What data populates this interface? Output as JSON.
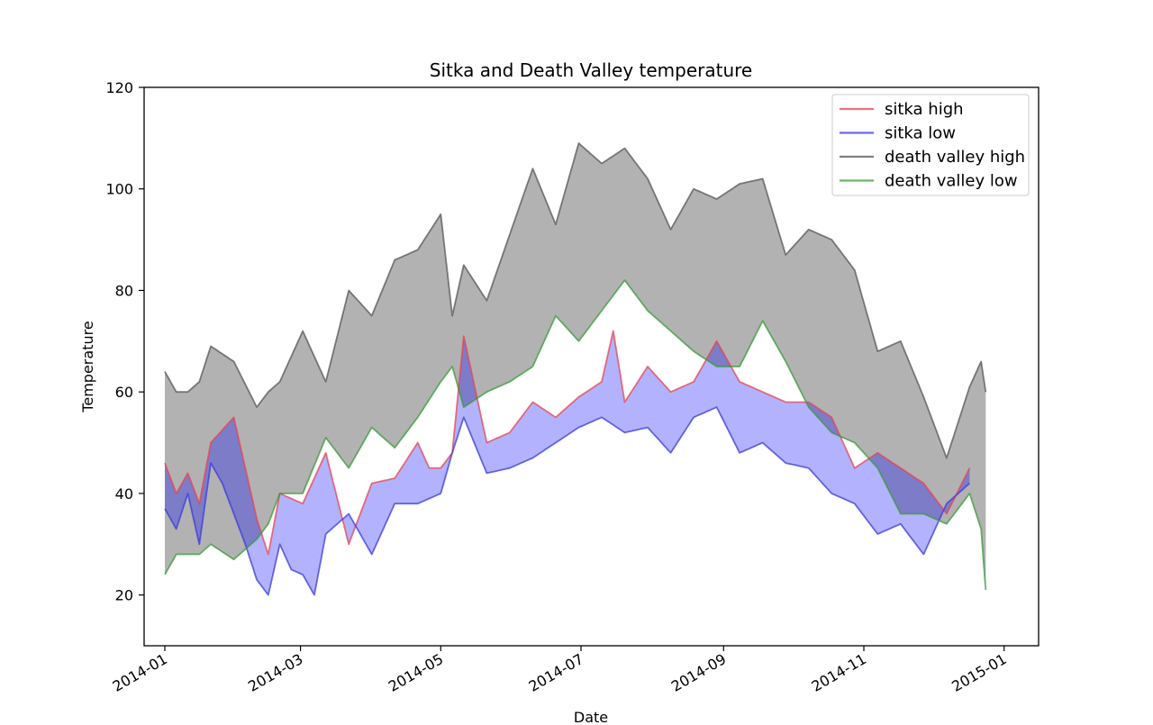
{
  "chart_data": {
    "type": "line",
    "title": "Sitka and Death Valley temperature",
    "xlabel": "Date",
    "ylabel": "Temperature",
    "ylim": [
      10,
      120
    ],
    "y_ticks": [
      20,
      40,
      60,
      80,
      100,
      120
    ],
    "xlim_days": [
      -9,
      380
    ],
    "x_ticks": [
      {
        "day": 0,
        "label": "2014-01"
      },
      {
        "day": 59,
        "label": "2014-03"
      },
      {
        "day": 120,
        "label": "2014-05"
      },
      {
        "day": 181,
        "label": "2014-07"
      },
      {
        "day": 243,
        "label": "2014-09"
      },
      {
        "day": 304,
        "label": "2014-11"
      },
      {
        "day": 365,
        "label": "2015-01"
      }
    ],
    "fills": [
      {
        "between": [
          "death valley high",
          "death valley low"
        ],
        "color": "#000000",
        "alpha": 0.3
      },
      {
        "between": [
          "sitka high",
          "sitka low"
        ],
        "color": "#0000ff",
        "alpha": 0.3
      }
    ],
    "series": [
      {
        "name": "sitka high",
        "color": "#e8434f",
        "days": [
          0,
          5,
          10,
          15,
          20,
          30,
          40,
          45,
          50,
          60,
          70,
          80,
          90,
          100,
          110,
          115,
          120,
          125,
          130,
          140,
          150,
          160,
          170,
          180,
          190,
          195,
          200,
          210,
          220,
          230,
          240,
          250,
          260,
          270,
          280,
          290,
          300,
          310,
          320,
          330,
          340,
          350
        ],
        "values": [
          46,
          40,
          44,
          38,
          50,
          55,
          35,
          28,
          40,
          38,
          48,
          30,
          42,
          43,
          50,
          45,
          45,
          48,
          71,
          50,
          52,
          58,
          55,
          59,
          62,
          72,
          58,
          65,
          60,
          62,
          70,
          62,
          60,
          58,
          58,
          55,
          45,
          48,
          45,
          42,
          36,
          45
        ]
      },
      {
        "name": "sitka low",
        "color": "#3b3bdb",
        "days": [
          0,
          5,
          10,
          15,
          20,
          25,
          30,
          35,
          40,
          45,
          50,
          55,
          60,
          65,
          70,
          80,
          90,
          100,
          110,
          120,
          125,
          130,
          140,
          150,
          160,
          170,
          180,
          190,
          200,
          210,
          220,
          230,
          240,
          250,
          260,
          270,
          280,
          290,
          300,
          310,
          320,
          330,
          340,
          350
        ],
        "values": [
          37,
          33,
          40,
          30,
          46,
          42,
          36,
          30,
          23,
          20,
          30,
          25,
          24,
          20,
          32,
          36,
          28,
          38,
          38,
          40,
          48,
          55,
          44,
          45,
          47,
          50,
          53,
          55,
          52,
          53,
          48,
          55,
          57,
          48,
          50,
          46,
          45,
          40,
          38,
          32,
          34,
          28,
          38,
          42
        ]
      },
      {
        "name": "death valley high",
        "color": "#555555",
        "days": [
          0,
          5,
          10,
          15,
          20,
          30,
          40,
          45,
          50,
          60,
          70,
          80,
          90,
          100,
          110,
          120,
          125,
          130,
          140,
          150,
          160,
          170,
          180,
          190,
          200,
          210,
          220,
          230,
          240,
          250,
          260,
          270,
          280,
          290,
          300,
          310,
          320,
          330,
          340,
          350,
          355,
          357
        ],
        "values": [
          64,
          60,
          60,
          62,
          69,
          66,
          57,
          60,
          62,
          72,
          62,
          80,
          75,
          86,
          88,
          95,
          75,
          85,
          78,
          91,
          104,
          93,
          109,
          105,
          108,
          102,
          92,
          100,
          98,
          101,
          102,
          87,
          92,
          90,
          84,
          68,
          70,
          59,
          47,
          61,
          66,
          60
        ]
      },
      {
        "name": "death valley low",
        "color": "#3a9a3a",
        "days": [
          0,
          5,
          10,
          15,
          20,
          30,
          40,
          45,
          50,
          60,
          70,
          80,
          90,
          100,
          110,
          120,
          125,
          130,
          140,
          150,
          160,
          170,
          180,
          190,
          200,
          210,
          220,
          230,
          240,
          250,
          260,
          270,
          280,
          290,
          300,
          310,
          320,
          330,
          340,
          350,
          355,
          357
        ],
        "values": [
          24,
          28,
          28,
          28,
          30,
          27,
          31,
          34,
          40,
          40,
          51,
          45,
          53,
          49,
          55,
          62,
          65,
          57,
          60,
          62,
          65,
          75,
          70,
          76,
          82,
          76,
          72,
          68,
          65,
          65,
          74,
          66,
          57,
          52,
          50,
          45,
          36,
          36,
          34,
          40,
          33,
          21
        ]
      }
    ]
  }
}
